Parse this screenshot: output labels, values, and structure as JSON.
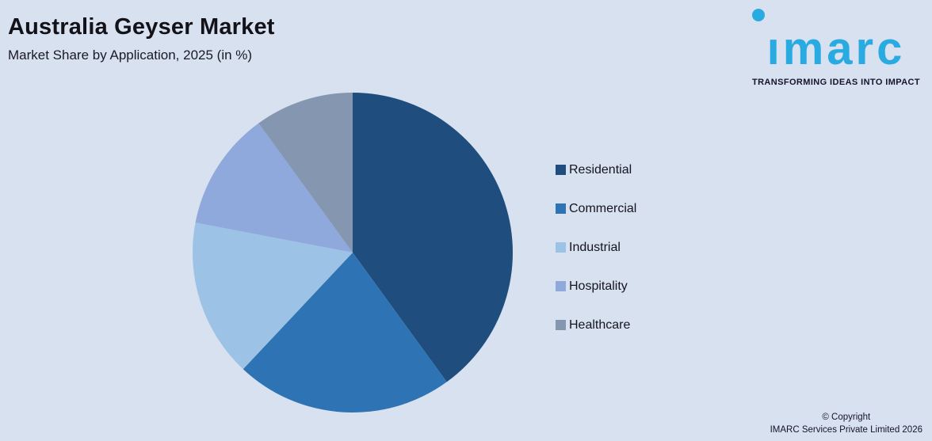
{
  "header": {
    "title": "Australia Geyser Market",
    "subtitle": "Market Share by Application, 2025 (in %)"
  },
  "logo": {
    "brand": "imarc",
    "brand_display": "ımarc",
    "tagline": "TRANSFORMING IDEAS INTO IMPACT",
    "brand_color": "#29ABE2"
  },
  "footer": {
    "line1": "© Copyright",
    "line2": "IMARC Services Private Limited 2026"
  },
  "colors": {
    "background": "#D8E1F0",
    "text": "#15151F"
  },
  "chart_data": {
    "type": "pie",
    "title": "Australia Geyser Market",
    "subtitle": "Market Share by Application, 2025 (in %)",
    "unit": "%",
    "start_angle_deg": 0,
    "direction": "clockwise",
    "legend_position": "right",
    "data_labels": false,
    "categories": [
      "Residential",
      "Commercial",
      "Industrial",
      "Hospitality",
      "Healthcare"
    ],
    "values": [
      40,
      22,
      16,
      12,
      10
    ],
    "colors": [
      "#1F4E7E",
      "#2E74B5",
      "#9CC3E6",
      "#8FA9DC",
      "#8496B0"
    ]
  }
}
